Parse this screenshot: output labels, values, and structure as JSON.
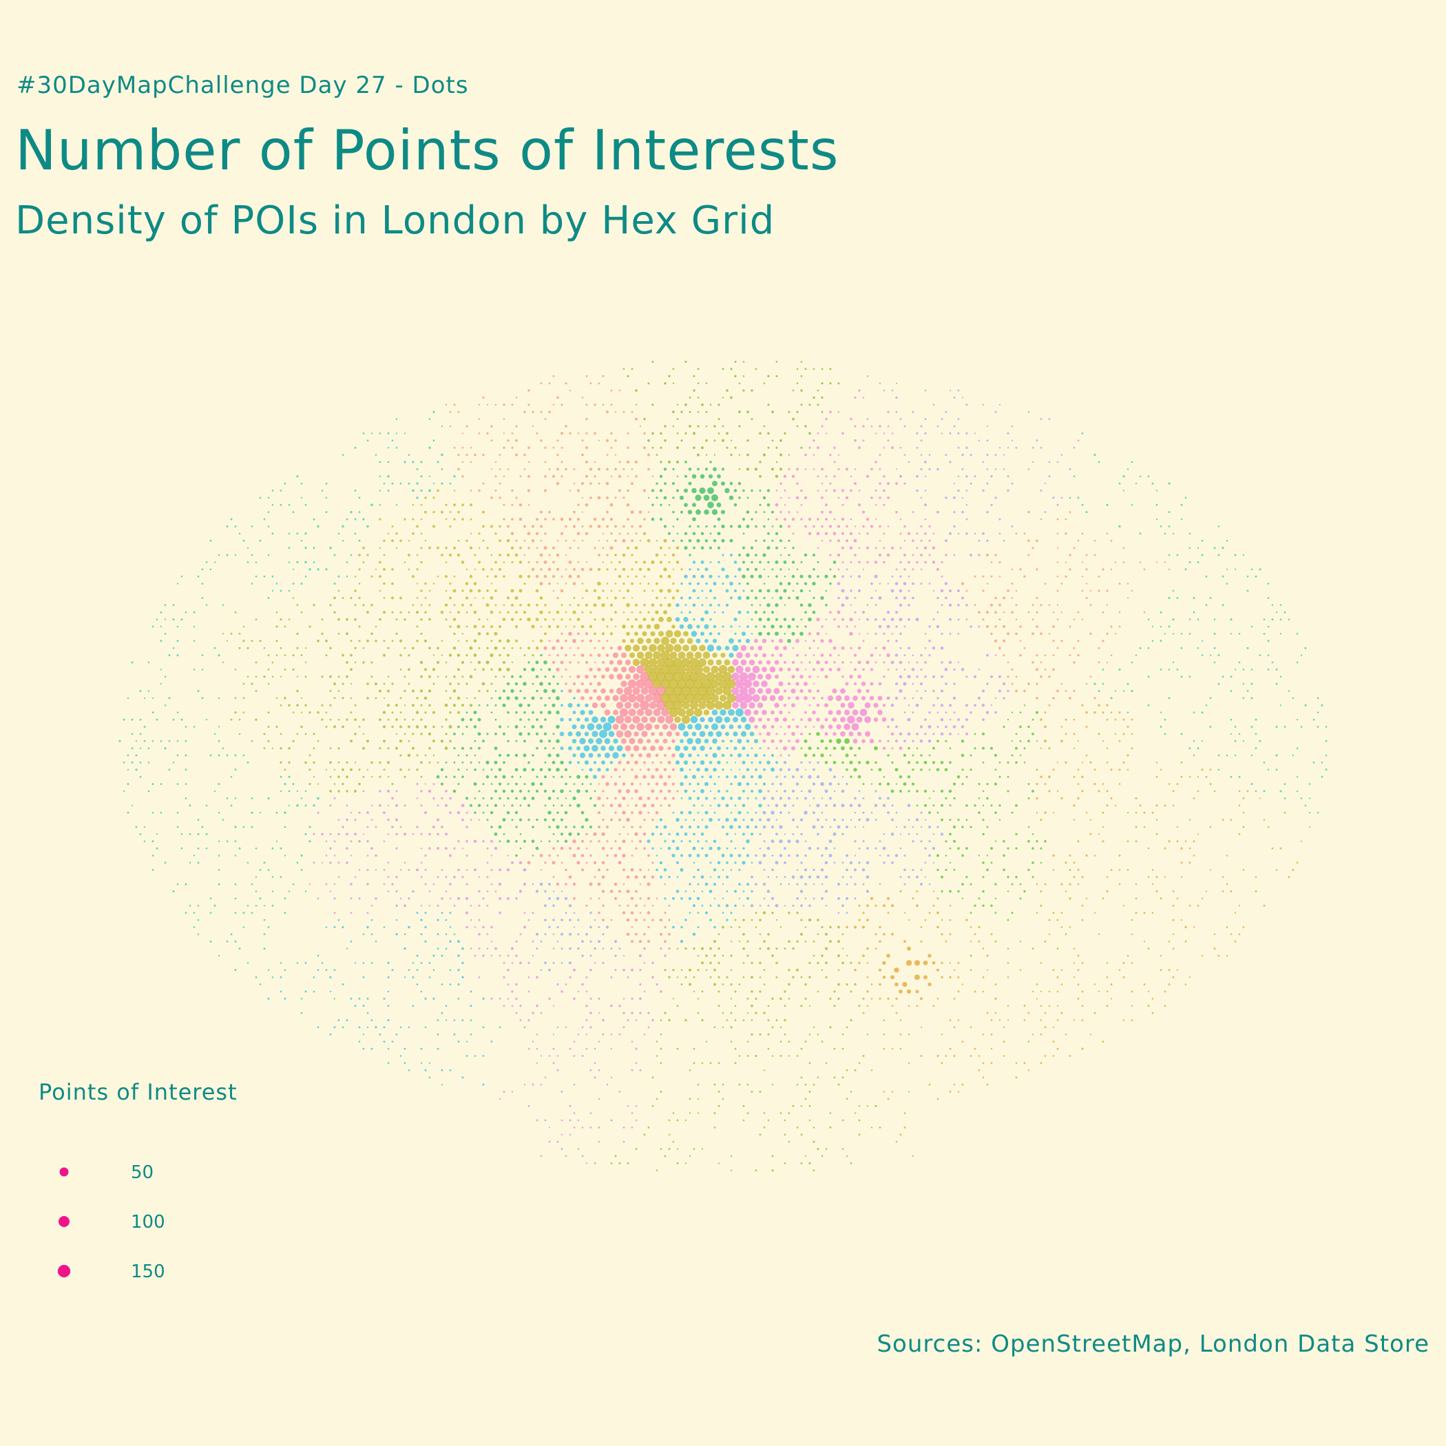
{
  "header": {
    "tag": "#30DayMapChallenge Day 27 - Dots",
    "title": "Number of Points of Interests",
    "subtitle": "Density of POIs in London by Hex Grid"
  },
  "legend": {
    "title": "Points of Interest",
    "marker_color": "#f0148c",
    "entries": [
      {
        "label": "50",
        "value": 50
      },
      {
        "label": "100",
        "value": 100
      },
      {
        "label": "150",
        "value": 150
      }
    ]
  },
  "source": "Sources: OpenStreetMap, London Data Store",
  "colors": {
    "background": "#fdf8dd",
    "text": "#0e8a86",
    "palette": [
      "#44cfb0",
      "#f4a07a",
      "#a3bd3b",
      "#8cba3a",
      "#3fbe66",
      "#45c3e6",
      "#c9b834",
      "#f78fa4",
      "#f28ad9",
      "#c79bf2",
      "#9cadf5",
      "#e5a93f",
      "#58c839",
      "#e48ee8"
    ]
  }
}
